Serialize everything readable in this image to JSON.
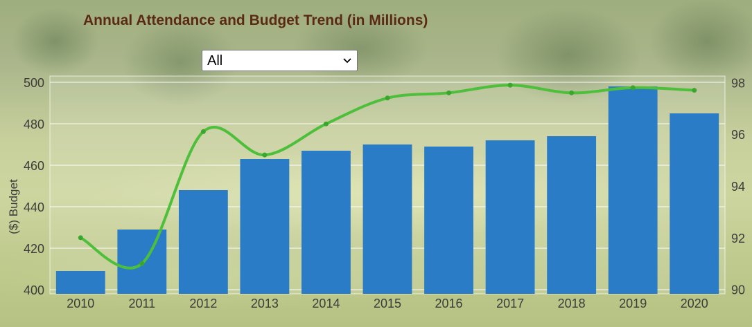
{
  "title": "Annual Attendance and Budget Trend (in Millions)",
  "filter": {
    "selected": "All"
  },
  "chart_data": {
    "type": "bar",
    "categories": [
      "2010",
      "2011",
      "2012",
      "2013",
      "2014",
      "2015",
      "2016",
      "2017",
      "2018",
      "2019",
      "2020"
    ],
    "series": [
      {
        "values": [
          409,
          429,
          448,
          463,
          467,
          470,
          469,
          472,
          474,
          498,
          485
        ],
        "color": "#2a7cc7",
        "axis": "left",
        "type": "bar"
      },
      {
        "values": [
          92,
          91,
          96.1,
          95.2,
          96.4,
          97.4,
          97.6,
          97.9,
          97.6,
          97.8,
          97.7
        ],
        "color": "#4ebf3a",
        "axis": "right",
        "type": "line",
        "smooth": true
      }
    ],
    "ylabel": "($) Budget",
    "ylim": [
      398,
      503
    ],
    "yticks": [
      400,
      420,
      440,
      460,
      480,
      500
    ],
    "y2lim": [
      89.83,
      98.25
    ],
    "y2ticks": [
      90,
      92,
      94,
      96,
      98
    ],
    "grid": true
  }
}
